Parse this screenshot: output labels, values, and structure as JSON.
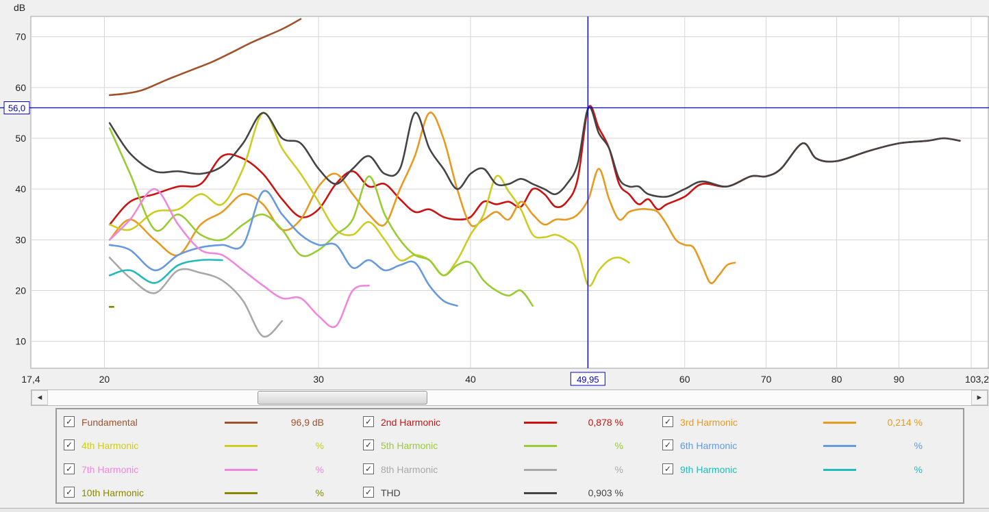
{
  "chart_data": {
    "type": "line",
    "y_unit": "dB",
    "ylim": [
      4.7,
      74
    ],
    "xlim": [
      17.4,
      103.2
    ],
    "x_scale": "log",
    "grid": true,
    "y_ticks": [
      "70",
      "60",
      "50",
      "40",
      "30",
      "20",
      "10"
    ],
    "x_ticks": [
      "17,4",
      "20",
      "30",
      "40",
      "50",
      "60",
      "70",
      "80",
      "90",
      "103,2"
    ],
    "cursor": {
      "x": 49.95,
      "y": 56.0,
      "x_label": "49,95",
      "y_label": "56,0"
    },
    "series": [
      {
        "name": "Fundamental",
        "color": "#a0522d",
        "points": [
          [
            20.2,
            58.5
          ],
          [
            20.8,
            58.8
          ],
          [
            21.5,
            59.5
          ],
          [
            22.5,
            61.5
          ],
          [
            23.5,
            63.3
          ],
          [
            24.5,
            65
          ],
          [
            25.5,
            67
          ],
          [
            26.5,
            69
          ],
          [
            28,
            71.5
          ],
          [
            29,
            73.5
          ]
        ]
      },
      {
        "name": "2nd Harmonic",
        "color": "#cc1111",
        "points": [
          [
            20.2,
            33
          ],
          [
            21,
            37.5
          ],
          [
            22,
            39
          ],
          [
            23,
            40.5
          ],
          [
            24,
            41
          ],
          [
            25,
            46.5
          ],
          [
            26,
            46
          ],
          [
            27,
            43
          ],
          [
            28,
            38
          ],
          [
            29,
            34.5
          ],
          [
            30,
            36
          ],
          [
            31,
            41
          ],
          [
            32,
            43.5
          ],
          [
            33,
            40.5
          ],
          [
            34,
            41
          ],
          [
            35,
            38
          ],
          [
            36,
            35.5
          ],
          [
            37,
            36
          ],
          [
            38,
            34.5
          ],
          [
            39,
            34
          ],
          [
            40,
            34.5
          ],
          [
            41,
            37.5
          ],
          [
            42,
            37
          ],
          [
            43,
            37.5
          ],
          [
            44,
            36.5
          ],
          [
            45,
            40
          ],
          [
            46,
            39
          ],
          [
            47,
            36.5
          ],
          [
            48,
            37.5
          ],
          [
            49,
            42
          ],
          [
            50,
            56
          ],
          [
            51,
            52
          ],
          [
            52,
            48
          ],
          [
            53,
            41
          ],
          [
            54,
            39
          ],
          [
            55,
            37
          ],
          [
            56,
            38
          ],
          [
            57,
            36
          ],
          [
            58,
            37
          ],
          [
            60,
            38.5
          ],
          [
            62,
            41
          ],
          [
            65,
            40.5
          ],
          [
            68,
            42.5
          ],
          [
            70,
            42.5
          ],
          [
            72,
            44
          ],
          [
            75,
            49
          ],
          [
            77,
            46
          ],
          [
            80,
            45.5
          ],
          [
            85,
            47.5
          ],
          [
            90,
            49
          ],
          [
            95,
            49.5
          ],
          [
            98,
            50
          ],
          [
            101,
            49.5
          ]
        ]
      },
      {
        "name": "3rd Harmonic",
        "color": "#e89a20",
        "points": [
          [
            20.2,
            30
          ],
          [
            21,
            34
          ],
          [
            22,
            30
          ],
          [
            23,
            27
          ],
          [
            24,
            33
          ],
          [
            25,
            35.5
          ],
          [
            26,
            39
          ],
          [
            27,
            37
          ],
          [
            28,
            32
          ],
          [
            29,
            34
          ],
          [
            30,
            40.5
          ],
          [
            31,
            43
          ],
          [
            32,
            39
          ],
          [
            33,
            35
          ],
          [
            34,
            33
          ],
          [
            35,
            40
          ],
          [
            36,
            46.5
          ],
          [
            37,
            55
          ],
          [
            38,
            50
          ],
          [
            39,
            40
          ],
          [
            40,
            33
          ],
          [
            41,
            34
          ],
          [
            42,
            35.5
          ],
          [
            43,
            34
          ],
          [
            44,
            37.5
          ],
          [
            45,
            35
          ],
          [
            46,
            33
          ],
          [
            47,
            34
          ],
          [
            48,
            34
          ],
          [
            49,
            35
          ],
          [
            50,
            38
          ],
          [
            51,
            44
          ],
          [
            52,
            38
          ],
          [
            53,
            34
          ],
          [
            54,
            35.5
          ],
          [
            55,
            36
          ],
          [
            56,
            36
          ],
          [
            57,
            35.5
          ],
          [
            58,
            33
          ],
          [
            59,
            30
          ],
          [
            60,
            29
          ],
          [
            61,
            28.5
          ],
          [
            62,
            25
          ],
          [
            63,
            21.5
          ],
          [
            64,
            23
          ],
          [
            65,
            25
          ],
          [
            66,
            25.5
          ]
        ]
      },
      {
        "name": "4th Harmonic",
        "color": "#cccc22",
        "points": [
          [
            20.2,
            33
          ],
          [
            21,
            32
          ],
          [
            22,
            35.5
          ],
          [
            23,
            36
          ],
          [
            24,
            39
          ],
          [
            25,
            37
          ],
          [
            26,
            44
          ],
          [
            27,
            55
          ],
          [
            28,
            48
          ],
          [
            29,
            43
          ],
          [
            30,
            37.5
          ],
          [
            31,
            32
          ],
          [
            32,
            31
          ],
          [
            33,
            33.5
          ],
          [
            34,
            30
          ],
          [
            35,
            26
          ],
          [
            36,
            27
          ],
          [
            37,
            26
          ],
          [
            38,
            23
          ],
          [
            39,
            26
          ],
          [
            40,
            31
          ],
          [
            41,
            35
          ],
          [
            42,
            42.5
          ],
          [
            43,
            39.5
          ],
          [
            44,
            36
          ],
          [
            45,
            31
          ],
          [
            46,
            30.5
          ],
          [
            47,
            31
          ],
          [
            48,
            30
          ],
          [
            49,
            28
          ],
          [
            50,
            21
          ],
          [
            51,
            24
          ],
          [
            52,
            26
          ],
          [
            53,
            26.5
          ],
          [
            54,
            25.5
          ]
        ]
      },
      {
        "name": "5th Harmonic",
        "color": "#99cc33",
        "points": [
          [
            20.2,
            52
          ],
          [
            21,
            43
          ],
          [
            22,
            32
          ],
          [
            23,
            35
          ],
          [
            24,
            31
          ],
          [
            25,
            30
          ],
          [
            26,
            33
          ],
          [
            27,
            35
          ],
          [
            28,
            32
          ],
          [
            29,
            27
          ],
          [
            30,
            28
          ],
          [
            31,
            31
          ],
          [
            32,
            34
          ],
          [
            33,
            42.5
          ],
          [
            34,
            35
          ],
          [
            35,
            30
          ],
          [
            36,
            27
          ],
          [
            37,
            26
          ],
          [
            38,
            23
          ],
          [
            39,
            25
          ],
          [
            40,
            25.5
          ],
          [
            41,
            22
          ],
          [
            42,
            20
          ],
          [
            43,
            19
          ],
          [
            44,
            20
          ],
          [
            45,
            17
          ]
        ]
      },
      {
        "name": "6th Harmonic",
        "color": "#6699dd",
        "points": [
          [
            20.2,
            29
          ],
          [
            21,
            28
          ],
          [
            22,
            24
          ],
          [
            23,
            27
          ],
          [
            24,
            28.5
          ],
          [
            25,
            29
          ],
          [
            26,
            29
          ],
          [
            27,
            39.5
          ],
          [
            28,
            35
          ],
          [
            29,
            31
          ],
          [
            30,
            29
          ],
          [
            31,
            29
          ],
          [
            32,
            24.5
          ],
          [
            33,
            26
          ],
          [
            34,
            24
          ],
          [
            35,
            25
          ],
          [
            36,
            25.5
          ],
          [
            37,
            21
          ],
          [
            38,
            18
          ],
          [
            39,
            17
          ]
        ]
      },
      {
        "name": "7th Harmonic",
        "color": "#ee88dd",
        "points": [
          [
            20.2,
            30
          ],
          [
            21,
            34
          ],
          [
            22,
            40
          ],
          [
            23,
            33
          ],
          [
            24,
            28
          ],
          [
            25,
            27
          ],
          [
            26,
            24
          ],
          [
            27,
            21
          ],
          [
            28,
            18.5
          ],
          [
            29,
            18.5
          ],
          [
            30,
            15
          ],
          [
            31,
            13
          ],
          [
            32,
            20
          ],
          [
            33,
            21
          ]
        ]
      },
      {
        "name": "8th Harmonic",
        "color": "#a8a8a8",
        "points": [
          [
            20.2,
            26.5
          ],
          [
            21,
            22.5
          ],
          [
            22,
            19.5
          ],
          [
            23,
            24
          ],
          [
            24,
            23.5
          ],
          [
            25,
            22
          ],
          [
            26,
            18
          ],
          [
            27,
            11
          ],
          [
            28,
            14
          ]
        ]
      },
      {
        "name": "9th Harmonic",
        "color": "#22bbbb",
        "points": [
          [
            20.2,
            23
          ],
          [
            21,
            24
          ],
          [
            22,
            21.5
          ],
          [
            23,
            25
          ],
          [
            24,
            26
          ],
          [
            25,
            26
          ]
        ]
      },
      {
        "name": "10th Harmonic",
        "color": "#888800",
        "points": [
          [
            20.2,
            16.8
          ],
          [
            20.35,
            16.8
          ]
        ]
      },
      {
        "name": "THD",
        "color": "#444444",
        "points": [
          [
            20.2,
            53
          ],
          [
            21,
            47
          ],
          [
            22,
            43.5
          ],
          [
            23,
            43.5
          ],
          [
            24,
            43
          ],
          [
            25,
            44.5
          ],
          [
            26,
            49
          ],
          [
            27,
            55
          ],
          [
            28,
            50
          ],
          [
            29,
            49
          ],
          [
            30,
            44
          ],
          [
            31,
            41
          ],
          [
            32,
            44
          ],
          [
            33,
            46.5
          ],
          [
            34,
            43
          ],
          [
            35,
            44
          ],
          [
            36,
            55
          ],
          [
            37,
            48
          ],
          [
            38,
            44
          ],
          [
            39,
            40
          ],
          [
            40,
            43
          ],
          [
            41,
            44
          ],
          [
            42,
            41
          ],
          [
            43,
            41
          ],
          [
            44,
            42
          ],
          [
            45,
            41
          ],
          [
            46,
            40
          ],
          [
            47,
            39
          ],
          [
            48,
            41
          ],
          [
            49,
            45
          ],
          [
            50,
            56
          ],
          [
            51,
            51
          ],
          [
            52,
            48
          ],
          [
            53,
            42
          ],
          [
            54,
            40.5
          ],
          [
            55,
            40.5
          ],
          [
            56,
            39
          ],
          [
            58,
            38.5
          ],
          [
            60,
            40
          ],
          [
            62,
            41.5
          ],
          [
            65,
            40.5
          ],
          [
            68,
            42.5
          ],
          [
            70,
            42.5
          ],
          [
            72,
            44
          ],
          [
            75,
            49
          ],
          [
            77,
            46
          ],
          [
            80,
            45.5
          ],
          [
            85,
            47.5
          ],
          [
            90,
            49
          ],
          [
            95,
            49.5
          ],
          [
            98,
            50
          ],
          [
            101,
            49.5
          ]
        ]
      }
    ]
  },
  "scrollbar": {
    "left_arrow": "◄",
    "right_arrow": "►"
  },
  "legend": {
    "items": [
      {
        "name": "Fundamental",
        "value": "96,9 dB",
        "color": "#a0522d",
        "checked": "✓"
      },
      {
        "name": "2nd Harmonic",
        "value": "0,878 %",
        "color": "#cc1111",
        "checked": "✓"
      },
      {
        "name": "3rd Harmonic",
        "value": "0,214 %",
        "color": "#e89a20",
        "checked": "✓"
      },
      {
        "name": "4th Harmonic",
        "value": "%",
        "color": "#cccc22",
        "checked": "✓"
      },
      {
        "name": "5th Harmonic",
        "value": "%",
        "color": "#99cc33",
        "checked": "✓"
      },
      {
        "name": "6th Harmonic",
        "value": "%",
        "color": "#6699dd",
        "checked": "✓"
      },
      {
        "name": "7th Harmonic",
        "value": "%",
        "color": "#ee88dd",
        "checked": "✓"
      },
      {
        "name": "8th Harmonic",
        "value": "%",
        "color": "#a8a8a8",
        "checked": "✓"
      },
      {
        "name": "9th Harmonic",
        "value": "%",
        "color": "#22bbbb",
        "checked": "✓"
      },
      {
        "name": "10th Harmonic",
        "value": "%",
        "color": "#888800",
        "checked": "✓"
      },
      {
        "name": "THD",
        "value": "0,903 %",
        "color": "#444444",
        "checked": "✓"
      }
    ]
  }
}
